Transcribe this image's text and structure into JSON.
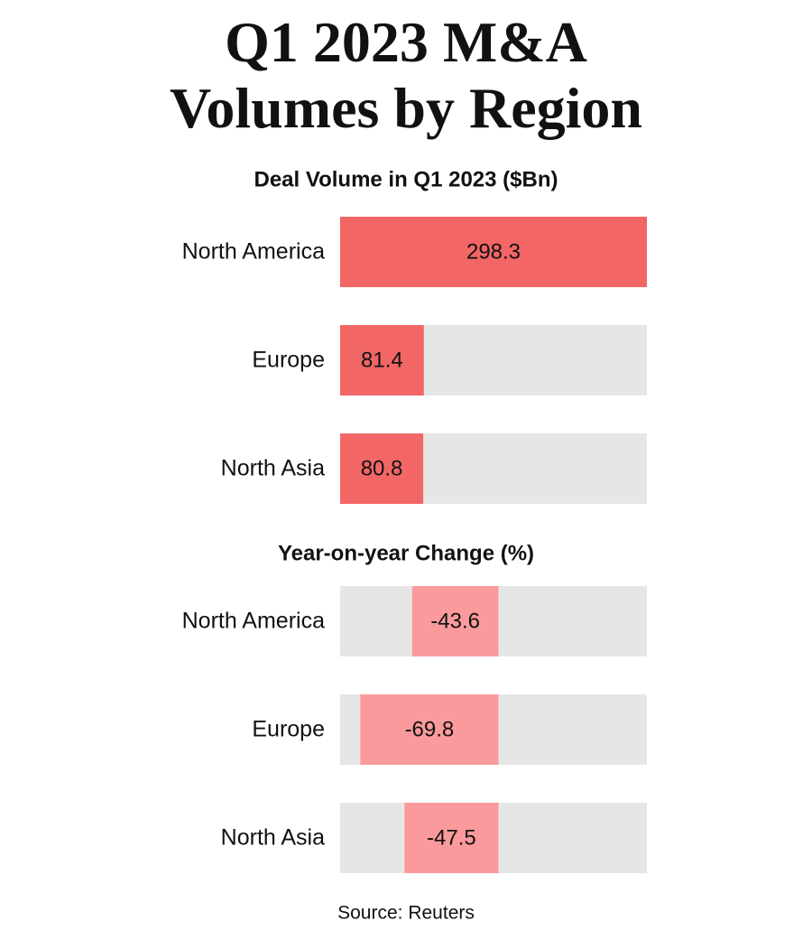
{
  "title": "Q1 2023 M&A Volumes by Region",
  "source": "Source: Reuters",
  "chart_data": [
    {
      "type": "bar",
      "orientation": "horizontal",
      "subtitle": "Deal Volume in Q1 2023 ($Bn)",
      "categories": [
        "North America",
        "Europe",
        "North Asia"
      ],
      "values": [
        298.3,
        81.4,
        80.8
      ],
      "color": "#f26666",
      "track_color": "#e6e6e6",
      "xlim": [
        0,
        298.3
      ]
    },
    {
      "type": "bar",
      "orientation": "horizontal",
      "subtitle": "Year-on-year Change (%)",
      "categories": [
        "North America",
        "Europe",
        "North Asia"
      ],
      "values": [
        -43.6,
        -69.8,
        -47.5
      ],
      "color": "#fb9a9c",
      "track_color": "#e6e6e6",
      "xlim": [
        -80,
        75
      ]
    }
  ]
}
